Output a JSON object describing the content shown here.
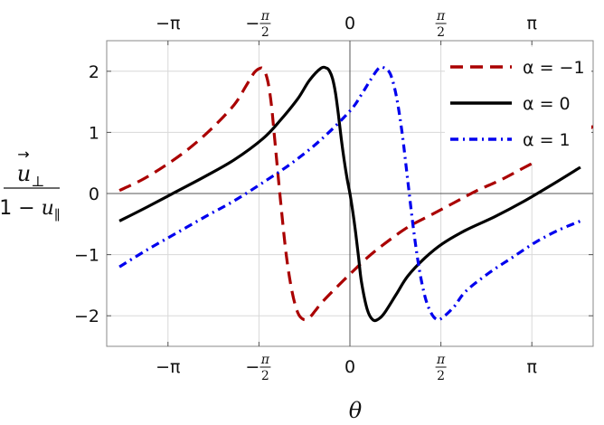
{
  "chart_data": {
    "type": "line",
    "title": "",
    "xlabel": "θ",
    "ylabel": {
      "vector_symbol": "u",
      "numerator_subscript": "⊥",
      "denominator_prefix": "1 − ",
      "denominator_var": "u",
      "denominator_subscript": "∥"
    },
    "xlim": [
      -4.2,
      4.2
    ],
    "ylim": [
      -2.5,
      2.5
    ],
    "grid": true,
    "legend_position": "top-right",
    "x_ticks": [
      {
        "value": -3.1416,
        "label": "−π",
        "fraction": false
      },
      {
        "value": -1.5708,
        "label": "−",
        "fraction": true,
        "num": "π",
        "den": "2"
      },
      {
        "value": 0,
        "label": "0",
        "fraction": false
      },
      {
        "value": 1.5708,
        "label": "",
        "fraction": true,
        "num": "π",
        "den": "2"
      },
      {
        "value": 3.1416,
        "label": "π",
        "fraction": false
      }
    ],
    "y_ticks": [
      {
        "value": 2,
        "label": "2"
      },
      {
        "value": 1,
        "label": "1"
      },
      {
        "value": 0,
        "label": "0"
      },
      {
        "value": -1,
        "label": "−1"
      },
      {
        "value": -2,
        "label": "−2"
      }
    ],
    "series": [
      {
        "name": "α = −1",
        "color": "#aa0000",
        "dash": "dashed",
        "x": [
          -3.98,
          -3.6,
          -3.2,
          -2.8,
          -2.4,
          -2.0,
          -1.8,
          -1.65,
          -1.55,
          -1.5,
          -1.45,
          -1.4,
          -1.35,
          -1.3,
          -1.2,
          -1.1,
          -1.0,
          -0.9,
          -0.8,
          -0.7,
          -0.6,
          -0.5,
          -0.3,
          0.0,
          0.3,
          0.6,
          1.0,
          1.4,
          1.8,
          2.2,
          2.6,
          3.0,
          3.4,
          3.8,
          4.2
        ],
        "y": [
          0.05,
          0.22,
          0.45,
          0.72,
          1.05,
          1.45,
          1.75,
          1.98,
          2.05,
          2.04,
          1.95,
          1.75,
          1.4,
          0.9,
          -0.1,
          -1.0,
          -1.6,
          -1.95,
          -2.06,
          -2.03,
          -1.92,
          -1.8,
          -1.6,
          -1.32,
          -1.05,
          -0.82,
          -0.55,
          -0.35,
          -0.15,
          0.05,
          0.22,
          0.42,
          0.62,
          0.85,
          1.1
        ]
      },
      {
        "name": "α = 0",
        "color": "#000000",
        "dash": "solid",
        "x": [
          -3.98,
          -3.5,
          -3.0,
          -2.5,
          -2.0,
          -1.5,
          -1.2,
          -0.9,
          -0.7,
          -0.5,
          -0.4,
          -0.35,
          -0.3,
          -0.25,
          -0.2,
          -0.15,
          -0.1,
          -0.05,
          0.0,
          0.05,
          0.1,
          0.15,
          0.2,
          0.3,
          0.4,
          0.5,
          0.6,
          0.8,
          1.0,
          1.3,
          1.6,
          2.0,
          2.5,
          3.0,
          3.5,
          3.98
        ],
        "y": [
          -0.45,
          -0.22,
          0.03,
          0.28,
          0.55,
          0.9,
          1.2,
          1.55,
          1.85,
          2.05,
          2.05,
          2.0,
          1.88,
          1.65,
          1.3,
          0.9,
          0.55,
          0.25,
          0.0,
          -0.3,
          -0.65,
          -1.05,
          -1.45,
          -1.9,
          -2.07,
          -2.05,
          -1.95,
          -1.65,
          -1.35,
          -1.05,
          -0.82,
          -0.6,
          -0.38,
          -0.13,
          0.15,
          0.43
        ]
      },
      {
        "name": "α = 1",
        "color": "#0000ee",
        "dash": "dashdot",
        "x": [
          -3.98,
          -3.5,
          -3.0,
          -2.5,
          -2.0,
          -1.5,
          -1.0,
          -0.5,
          0.0,
          0.2,
          0.35,
          0.5,
          0.6,
          0.7,
          0.8,
          0.9,
          1.0,
          1.1,
          1.2,
          1.3,
          1.4,
          1.5,
          1.6,
          1.8,
          2.0,
          2.4,
          2.8,
          3.2,
          3.6,
          3.98
        ],
        "y": [
          -1.2,
          -0.92,
          -0.65,
          -0.38,
          -0.12,
          0.18,
          0.5,
          0.88,
          1.35,
          1.62,
          1.85,
          2.05,
          2.05,
          1.95,
          1.6,
          1.0,
          0.2,
          -0.6,
          -1.25,
          -1.7,
          -1.95,
          -2.06,
          -2.03,
          -1.85,
          -1.6,
          -1.3,
          -1.05,
          -0.8,
          -0.6,
          -0.45
        ]
      }
    ]
  }
}
